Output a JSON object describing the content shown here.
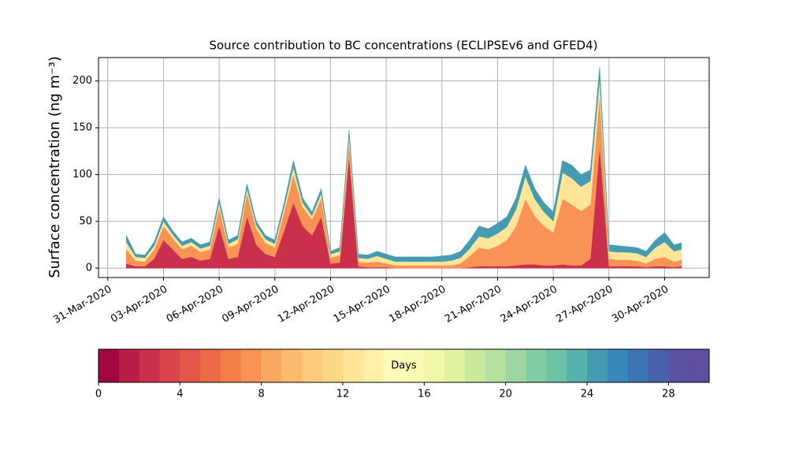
{
  "chart_data": {
    "type": "stacked_area",
    "title": "Source contribution to BC concentrations (ECLIPSEv6 and GFED4)",
    "y_label": "Surface concentration (ng m⁻³)",
    "x": [
      1.0,
      1.5,
      2.0,
      2.5,
      3.0,
      3.5,
      4.0,
      4.5,
      5.0,
      5.5,
      6.0,
      6.5,
      7.0,
      7.5,
      8.0,
      8.5,
      9.0,
      9.5,
      10.0,
      10.5,
      11.0,
      11.5,
      12.0,
      12.5,
      13.0,
      13.5,
      14.0,
      14.5,
      15.0,
      15.5,
      16.0,
      16.5,
      17.0,
      17.5,
      18.0,
      18.5,
      19.0,
      19.5,
      20.0,
      20.5,
      21.0,
      21.5,
      22.0,
      22.5,
      23.0,
      23.5,
      24.0,
      24.5,
      25.0,
      25.5,
      26.0,
      26.5,
      27.0,
      27.5,
      28.0,
      28.5,
      29.0,
      29.5,
      30.0,
      30.5,
      30.9
    ],
    "series": [
      {
        "color": "#ca304b",
        "values": [
          5,
          2,
          2,
          10,
          30,
          20,
          10,
          12,
          8,
          10,
          45,
          10,
          12,
          55,
          25,
          15,
          12,
          40,
          70,
          45,
          35,
          55,
          5,
          6,
          120,
          2,
          1,
          1,
          1,
          0,
          0,
          0,
          0,
          0,
          0,
          0,
          0,
          1,
          2,
          2,
          2,
          2,
          3,
          4,
          4,
          3,
          3,
          4,
          3,
          3,
          10,
          130,
          2,
          2,
          2,
          2,
          1,
          2,
          2,
          1,
          2
        ]
      },
      {
        "color": "#f99355",
        "values": [
          15,
          6,
          5,
          10,
          15,
          12,
          10,
          12,
          9,
          10,
          20,
          12,
          14,
          25,
          17,
          12,
          10,
          20,
          30,
          20,
          17,
          20,
          6,
          8,
          15,
          5,
          5,
          6,
          4,
          3,
          3,
          3,
          3,
          3,
          3,
          3,
          5,
          12,
          20,
          18,
          22,
          28,
          42,
          70,
          52,
          42,
          35,
          70,
          65,
          58,
          58,
          55,
          8,
          7,
          7,
          6,
          4,
          8,
          10,
          6,
          7
        ]
      },
      {
        "color": "#fee597",
        "values": [
          8,
          4,
          4,
          4,
          5,
          4,
          4,
          4,
          4,
          4,
          5,
          4,
          5,
          5,
          4,
          4,
          4,
          5,
          8,
          5,
          4,
          5,
          4,
          4,
          7,
          4,
          4,
          6,
          5,
          4,
          4,
          4,
          4,
          4,
          4,
          5,
          6,
          8,
          12,
          12,
          13,
          14,
          18,
          24,
          18,
          15,
          12,
          28,
          28,
          26,
          25,
          18,
          8,
          8,
          8,
          8,
          7,
          12,
          16,
          11,
          11
        ]
      },
      {
        "color": "#459cb1",
        "values": [
          7,
          3,
          3,
          4,
          5,
          4,
          4,
          4,
          4,
          4,
          5,
          4,
          4,
          5,
          4,
          4,
          4,
          5,
          7,
          5,
          4,
          5,
          3,
          4,
          6,
          4,
          4,
          5,
          5,
          5,
          5,
          5,
          5,
          5,
          6,
          6,
          7,
          9,
          11,
          10,
          11,
          11,
          12,
          12,
          11,
          10,
          10,
          13,
          14,
          13,
          12,
          12,
          7,
          7,
          6,
          6,
          6,
          8,
          10,
          7,
          7
        ]
      }
    ],
    "xlim": [
      -0.5,
      32.4
    ],
    "xticks": [
      {
        "value": 0,
        "label": "31-Mar-2020"
      },
      {
        "value": 3,
        "label": "03-Apr-2020"
      },
      {
        "value": 6,
        "label": "06-Apr-2020"
      },
      {
        "value": 9,
        "label": "09-Apr-2020"
      },
      {
        "value": 12,
        "label": "12-Apr-2020"
      },
      {
        "value": 15,
        "label": "15-Apr-2020"
      },
      {
        "value": 18,
        "label": "18-Apr-2020"
      },
      {
        "value": 21,
        "label": "21-Apr-2020"
      },
      {
        "value": 24,
        "label": "24-Apr-2020"
      },
      {
        "value": 27,
        "label": "27-Apr-2020"
      },
      {
        "value": 30,
        "label": "30-Apr-2020"
      }
    ],
    "ylim": [
      -10,
      225
    ],
    "yticks": [
      0,
      50,
      100,
      150,
      200
    ],
    "grid": true,
    "colorbar": {
      "label": "Days",
      "lim": [
        0,
        30
      ],
      "ticks": [
        0,
        4,
        8,
        12,
        16,
        20,
        24,
        28
      ],
      "colors": [
        "#a0083f",
        "#b81d46",
        "#ca304b",
        "#da444b",
        "#e4574a",
        "#ed6a46",
        "#f57d4a",
        "#f99355",
        "#fba862",
        "#fdbb6d",
        "#fdcb7a",
        "#fed889",
        "#fee597",
        "#fff0a8",
        "#fffbb9",
        "#f8fcb3",
        "#eef8a7",
        "#e0f29d",
        "#cbe99d",
        "#b5e09f",
        "#9dd6a3",
        "#82cca5",
        "#6cc3a6",
        "#58b0ab",
        "#459cb1",
        "#3987bb",
        "#3e74b4",
        "#4962ac",
        "#5a52a3",
        "#5e4fa2"
      ]
    }
  }
}
